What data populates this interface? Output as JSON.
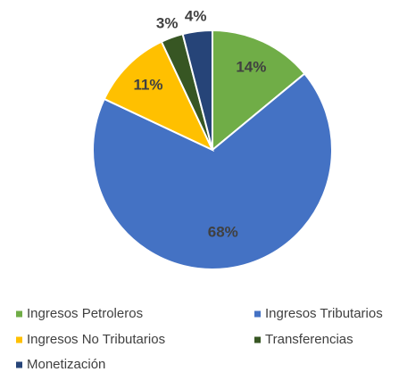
{
  "chart_data": {
    "type": "pie",
    "categories": [
      "Ingresos Petroleros",
      "Ingresos Tributarios",
      "Ingresos No Tributarios",
      "Transferencias",
      "Monetización"
    ],
    "values": [
      14,
      68,
      11,
      3,
      4
    ],
    "value_labels": [
      "14%",
      "68%",
      "11%",
      "3%",
      "4%"
    ],
    "colors": [
      "#70ad47",
      "#4472c4",
      "#ffc000",
      "#375623",
      "#264478"
    ],
    "legend": "bottom"
  }
}
